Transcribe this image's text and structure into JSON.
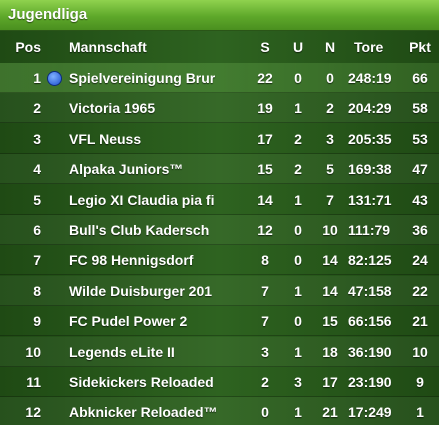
{
  "title": "Jugendliga",
  "table": {
    "columns": [
      "Pos",
      "Mannschaft",
      "S",
      "U",
      "N",
      "Tore",
      "Pkt"
    ],
    "rows": [
      [
        1,
        "Spielvereinigung Brur",
        22,
        0,
        0,
        "248:19",
        66
      ],
      [
        2,
        "Victoria 1965",
        19,
        1,
        2,
        "204:29",
        58
      ],
      [
        3,
        "VFL Neuss",
        17,
        2,
        3,
        "205:35",
        53
      ],
      [
        4,
        "Alpaka Juniors™",
        15,
        2,
        5,
        "169:38",
        47
      ],
      [
        5,
        "Legio XI Claudia pia fi",
        14,
        1,
        7,
        "131:71",
        43
      ],
      [
        6,
        "Bull's Club  Kadersch",
        12,
        0,
        10,
        "111:79",
        36
      ],
      [
        7,
        "FC 98 Hennigsdorf",
        8,
        0,
        14,
        "82:125",
        24
      ],
      [
        8,
        "Wilde Duisburger 201",
        7,
        1,
        14,
        "47:158",
        22
      ],
      [
        9,
        "FC Pudel Power 2",
        7,
        0,
        15,
        "66:156",
        21
      ],
      [
        10,
        "Legends eLite II",
        3,
        1,
        18,
        "36:190",
        10
      ],
      [
        11,
        "Sidekickers Reloaded",
        2,
        3,
        17,
        "23:190",
        9
      ],
      [
        12,
        "Abknicker Reloaded™",
        0,
        1,
        21,
        "17:249",
        1
      ]
    ]
  }
}
